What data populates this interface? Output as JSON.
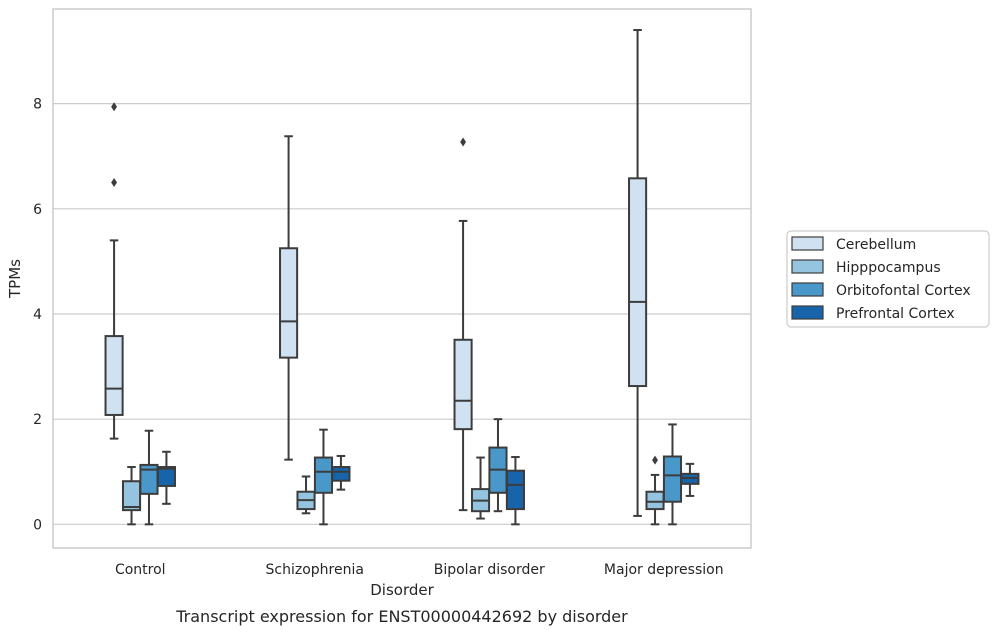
{
  "chart_data": {
    "type": "box",
    "xlabel": "Disorder",
    "ylabel": "TPMs",
    "caption": "Transcript expression for ENST00000442692 by disorder",
    "categories": [
      "Control",
      "Schizophrenia",
      "Bipolar disorder",
      "Major depression"
    ],
    "ylim": [
      -0.45,
      9.8
    ],
    "yticks": [
      0,
      2,
      4,
      6,
      8
    ],
    "grid": "horizontal",
    "legend_position": "right",
    "series": [
      {
        "name": "Cerebellum",
        "color": "#d0e1f2",
        "boxes": [
          {
            "whisker_low": 1.63,
            "q1": 2.08,
            "median": 2.58,
            "q3": 3.58,
            "whisker_high": 5.4,
            "outliers": [
              6.5,
              7.94
            ]
          },
          {
            "whisker_low": 1.23,
            "q1": 3.17,
            "median": 3.86,
            "q3": 5.25,
            "whisker_high": 7.38,
            "outliers": []
          },
          {
            "whisker_low": 0.27,
            "q1": 1.81,
            "median": 2.35,
            "q3": 3.51,
            "whisker_high": 5.77,
            "outliers": [
              7.27
            ]
          },
          {
            "whisker_low": 0.16,
            "q1": 2.63,
            "median": 4.23,
            "q3": 6.58,
            "whisker_high": 9.4,
            "outliers": []
          }
        ]
      },
      {
        "name": "Hipppocampus",
        "color": "#94c4df",
        "boxes": [
          {
            "whisker_low": 0.0,
            "q1": 0.27,
            "median": 0.33,
            "q3": 0.82,
            "whisker_high": 1.09,
            "outliers": []
          },
          {
            "whisker_low": 0.21,
            "q1": 0.29,
            "median": 0.46,
            "q3": 0.62,
            "whisker_high": 0.91,
            "outliers": []
          },
          {
            "whisker_low": 0.11,
            "q1": 0.25,
            "median": 0.45,
            "q3": 0.67,
            "whisker_high": 1.27,
            "outliers": []
          },
          {
            "whisker_low": 0.0,
            "q1": 0.29,
            "median": 0.43,
            "q3": 0.62,
            "whisker_high": 0.94,
            "outliers": [
              1.22
            ]
          }
        ]
      },
      {
        "name": "Orbitofontal Cortex",
        "color": "#4a98c9",
        "boxes": [
          {
            "whisker_low": 0.0,
            "q1": 0.58,
            "median": 1.04,
            "q3": 1.13,
            "whisker_high": 1.78,
            "outliers": []
          },
          {
            "whisker_low": 0.0,
            "q1": 0.6,
            "median": 1.0,
            "q3": 1.27,
            "whisker_high": 1.8,
            "outliers": []
          },
          {
            "whisker_low": 0.25,
            "q1": 0.6,
            "median": 1.04,
            "q3": 1.46,
            "whisker_high": 2.0,
            "outliers": []
          },
          {
            "whisker_low": 0.0,
            "q1": 0.43,
            "median": 0.93,
            "q3": 1.29,
            "whisker_high": 1.9,
            "outliers": []
          }
        ]
      },
      {
        "name": "Prefrontal Cortex",
        "color": "#1764ab",
        "boxes": [
          {
            "whisker_low": 0.39,
            "q1": 0.73,
            "median": 1.06,
            "q3": 1.09,
            "whisker_high": 1.38,
            "outliers": []
          },
          {
            "whisker_low": 0.66,
            "q1": 0.83,
            "median": 1.0,
            "q3": 1.09,
            "whisker_high": 1.3,
            "outliers": []
          },
          {
            "whisker_low": 0.0,
            "q1": 0.29,
            "median": 0.75,
            "q3": 1.02,
            "whisker_high": 1.28,
            "outliers": []
          },
          {
            "whisker_low": 0.54,
            "q1": 0.77,
            "median": 0.88,
            "q3": 0.96,
            "whisker_high": 1.15,
            "outliers": []
          }
        ]
      }
    ]
  }
}
